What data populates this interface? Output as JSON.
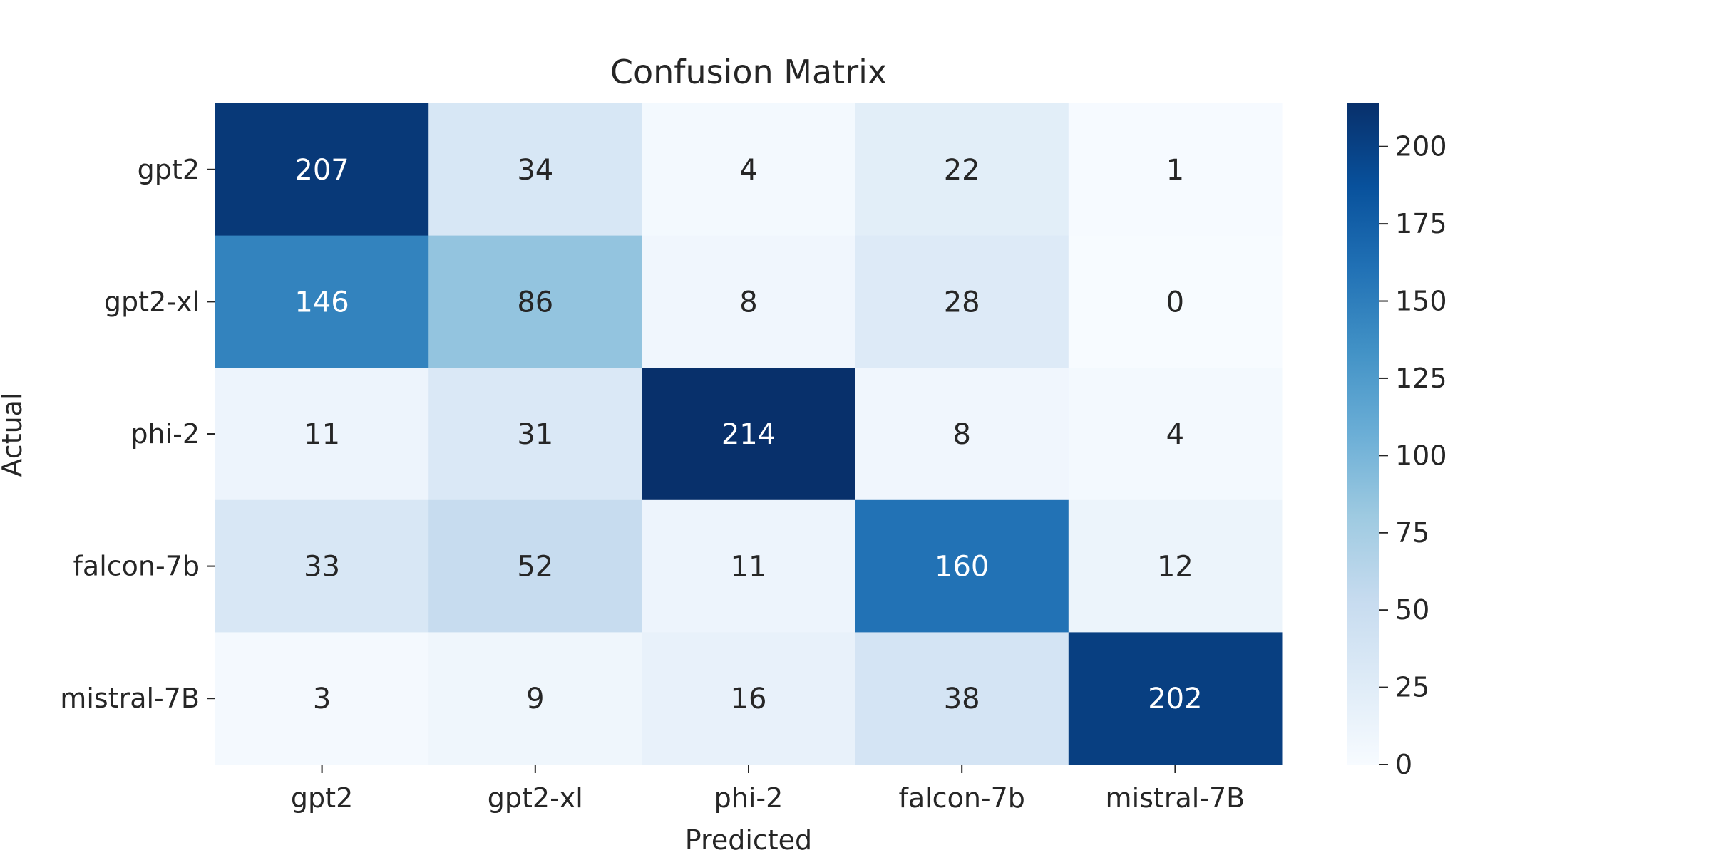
{
  "chart_data": {
    "type": "heatmap",
    "title": "Confusion Matrix",
    "xlabel": "Predicted",
    "ylabel": "Actual",
    "x_categories": [
      "gpt2",
      "gpt2-xl",
      "phi-2",
      "falcon-7b",
      "mistral-7B"
    ],
    "y_categories": [
      "gpt2",
      "gpt2-xl",
      "phi-2",
      "falcon-7b",
      "mistral-7B"
    ],
    "values": [
      [
        207,
        34,
        4,
        22,
        1
      ],
      [
        146,
        86,
        8,
        28,
        0
      ],
      [
        11,
        31,
        214,
        8,
        4
      ],
      [
        33,
        52,
        11,
        160,
        12
      ],
      [
        3,
        9,
        16,
        38,
        202
      ]
    ],
    "colorbar": {
      "range": [
        0,
        214
      ],
      "ticks": [
        0,
        25,
        50,
        75,
        100,
        125,
        150,
        175,
        200
      ]
    },
    "colormap": "Blues",
    "colors": {
      "low": "#f7fbff",
      "high": "#08306b",
      "text_dark": "#262626",
      "text_light": "#ffffff"
    }
  }
}
